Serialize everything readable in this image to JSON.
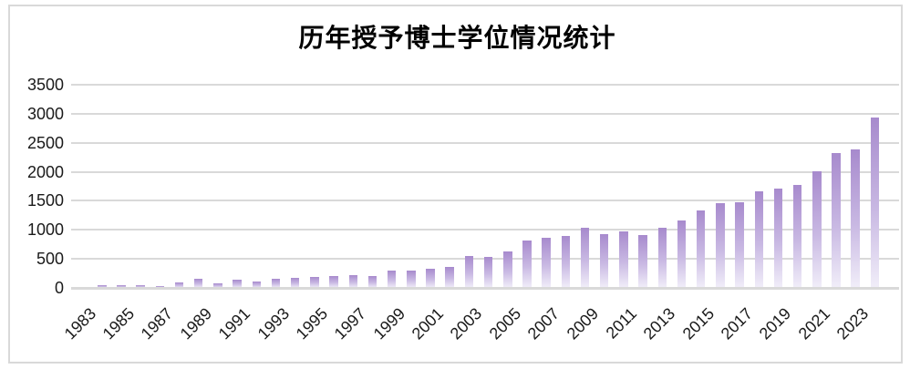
{
  "chart_title": "历年授予博士学位情况统计",
  "chart_data": {
    "type": "bar",
    "title": "历年授予博士学位情况统计",
    "x": [
      1983,
      1984,
      1985,
      1986,
      1987,
      1988,
      1989,
      1990,
      1991,
      1992,
      1993,
      1994,
      1995,
      1996,
      1997,
      1998,
      1999,
      2000,
      2001,
      2002,
      2003,
      2004,
      2005,
      2006,
      2007,
      2008,
      2009,
      2010,
      2011,
      2012,
      2013,
      2014,
      2015,
      2016,
      2017,
      2018,
      2019,
      2020,
      2021,
      2022,
      2023,
      2024
    ],
    "values": [
      20,
      45,
      40,
      45,
      25,
      95,
      160,
      80,
      145,
      115,
      160,
      170,
      195,
      210,
      220,
      205,
      305,
      300,
      335,
      365,
      555,
      540,
      620,
      815,
      865,
      895,
      1040,
      930,
      970,
      910,
      1030,
      1160,
      1340,
      1460,
      1470,
      1660,
      1710,
      1780,
      2010,
      2320,
      2380,
      2935
    ],
    "xlabel": "",
    "ylabel": "",
    "ylim": [
      0,
      3500
    ],
    "ytick_interval": 500,
    "ytick_labels": [
      "0",
      "500",
      "1000",
      "1500",
      "2000",
      "2500",
      "3000",
      "3500"
    ],
    "xtick_labels": [
      "1983",
      "1985",
      "1987",
      "1989",
      "1991",
      "1993",
      "1995",
      "1997",
      "1999",
      "2001",
      "2003",
      "2005",
      "2007",
      "2009",
      "2011",
      "2013",
      "2015",
      "2017",
      "2019",
      "2021",
      "2023"
    ],
    "grid": "horizontal",
    "legend": "none",
    "colors": {
      "bar_gradient_top": "#a78acd",
      "bar_gradient_mid": "#c9b9e3",
      "bar_gradient_bottom": "#f1eef9",
      "gridline": "#d9d9d9",
      "axis_line": "#d9d9d9",
      "frame_border": "#d9d9d9",
      "text": "#1a1a1a",
      "title_text": "#000000",
      "background": "#ffffff"
    }
  }
}
